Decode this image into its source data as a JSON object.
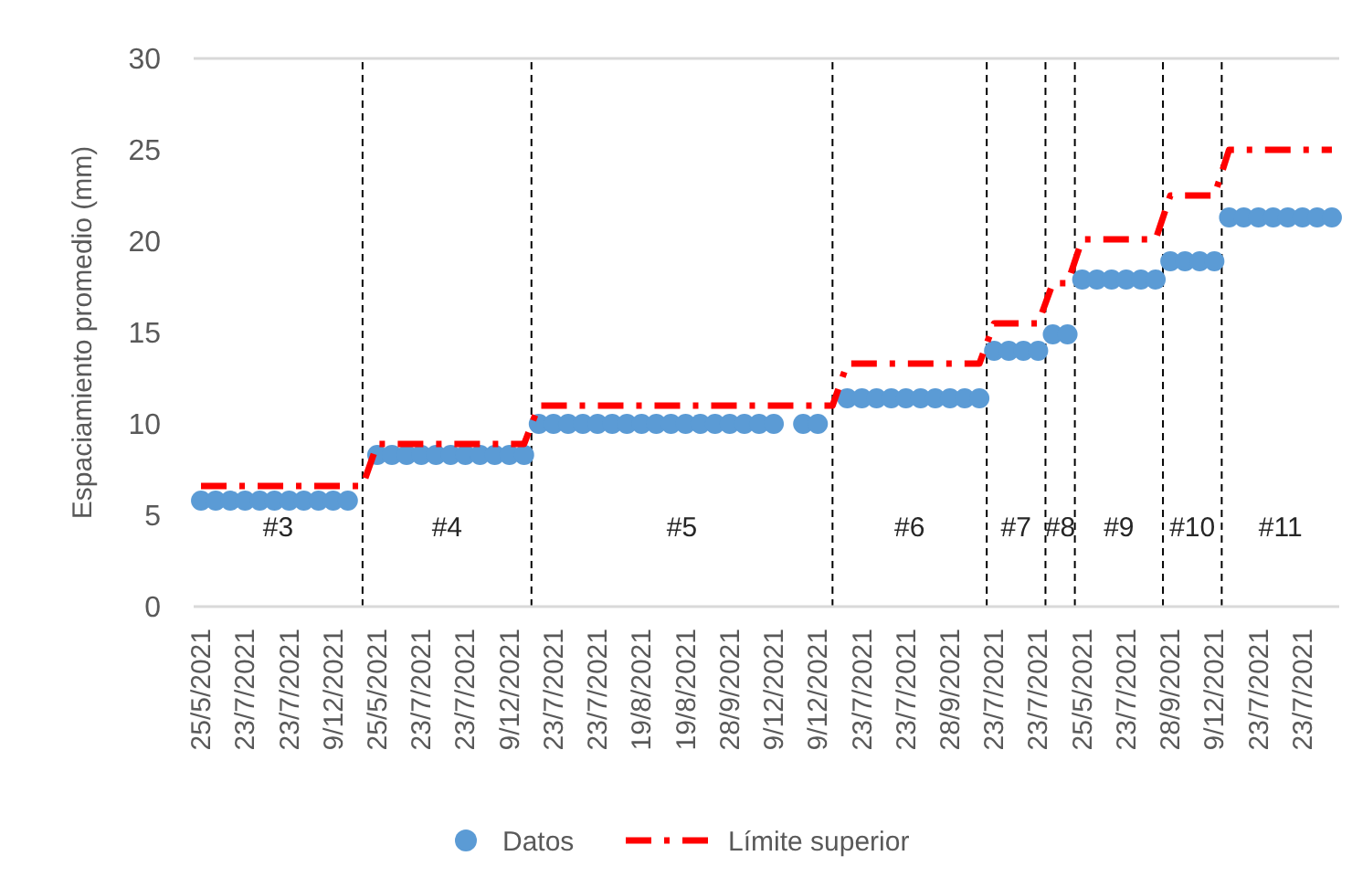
{
  "chart_data": {
    "type": "scatter",
    "ylabel": "Espaciamiento promedio (mm)",
    "categories": [
      "25/5/2021",
      null,
      null,
      "23/7/2021",
      null,
      null,
      "23/7/2021",
      null,
      null,
      "9/12/2021",
      null,
      null,
      "25/5/2021",
      null,
      null,
      "23/7/2021",
      null,
      null,
      "23/7/2021",
      null,
      null,
      "9/12/2021",
      null,
      null,
      "23/7/2021",
      null,
      null,
      "23/7/2021",
      null,
      null,
      "19/8/2021",
      null,
      null,
      "19/8/2021",
      null,
      null,
      "28/9/2021",
      null,
      null,
      "9/12/2021",
      null,
      null,
      "9/12/2021",
      null,
      null,
      "23/7/2021",
      null,
      null,
      "23/7/2021",
      null,
      null,
      "28/9/2021",
      null,
      null,
      "23/7/2021",
      null,
      null,
      "23/7/2021",
      null,
      null,
      "25/5/2021",
      null,
      null,
      "23/7/2021",
      null,
      null,
      "28/9/2021",
      null,
      null,
      "9/12/2021",
      null,
      null,
      "23/7/2021",
      null,
      null,
      "23/7/2021",
      null,
      null
    ],
    "series": [
      {
        "name": "Datos",
        "marker": "circle",
        "color": "#5b9bd5",
        "values": [
          5.8,
          5.8,
          5.8,
          5.8,
          5.8,
          5.8,
          5.8,
          5.8,
          5.8,
          5.8,
          5.8,
          null,
          8.3,
          8.3,
          8.3,
          8.3,
          8.3,
          8.3,
          8.3,
          8.3,
          8.3,
          8.3,
          8.3,
          10.0,
          10.0,
          10.0,
          10.0,
          10.0,
          10.0,
          10.0,
          10.0,
          10.0,
          10.0,
          10.0,
          10.0,
          10.0,
          10.0,
          10.0,
          10.0,
          10.0,
          null,
          10.0,
          10.0,
          null,
          11.4,
          11.4,
          11.4,
          11.4,
          11.4,
          11.4,
          11.4,
          11.4,
          11.4,
          11.4,
          14.0,
          14.0,
          14.0,
          14.0,
          14.9,
          14.9,
          17.9,
          17.9,
          17.9,
          17.9,
          17.9,
          17.9,
          18.9,
          18.9,
          18.9,
          18.9,
          21.3,
          21.3,
          21.3,
          21.3,
          21.3,
          21.3,
          21.3,
          21.3
        ]
      },
      {
        "name": "Límite superior",
        "type": "line",
        "marker": "none",
        "line_style": "dashed",
        "color": "#ff0000",
        "values": [
          6.6,
          6.6,
          6.6,
          6.6,
          6.6,
          6.6,
          6.6,
          6.6,
          6.6,
          6.6,
          6.6,
          6.6,
          8.9,
          8.9,
          8.9,
          8.9,
          8.9,
          8.9,
          8.9,
          8.9,
          8.9,
          8.9,
          8.9,
          11.0,
          11.0,
          11.0,
          11.0,
          11.0,
          11.0,
          11.0,
          11.0,
          11.0,
          11.0,
          11.0,
          11.0,
          11.0,
          11.0,
          11.0,
          11.0,
          11.0,
          11.0,
          11.0,
          11.0,
          11.0,
          13.3,
          13.3,
          13.3,
          13.3,
          13.3,
          13.3,
          13.3,
          13.3,
          13.3,
          13.3,
          15.5,
          15.5,
          15.5,
          15.5,
          17.7,
          17.7,
          20.1,
          20.1,
          20.1,
          20.1,
          20.1,
          20.1,
          22.5,
          22.5,
          22.5,
          22.5,
          25.0,
          25.0,
          25.0,
          25.0,
          25.0,
          25.0,
          25.0,
          25.0
        ]
      }
    ],
    "ylim": [
      0,
      30
    ],
    "yticks": [
      0,
      5,
      10,
      15,
      20,
      25,
      30
    ],
    "annotations": [
      "#3",
      "#4",
      "#5",
      "#6",
      "#7",
      "#8",
      "#9",
      "#10",
      "#11"
    ],
    "grid": false,
    "legend": "bottom"
  }
}
